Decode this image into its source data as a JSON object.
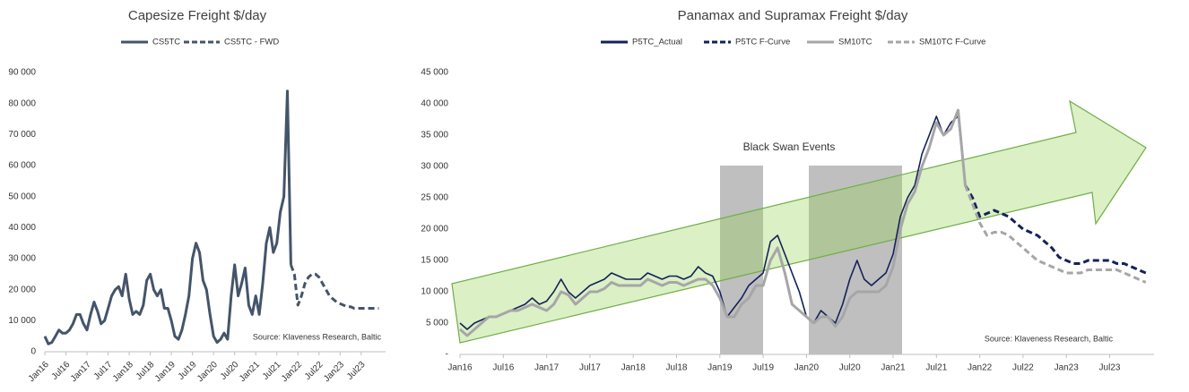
{
  "chart_data": [
    {
      "type": "line",
      "title": "Capesize Freight $/day",
      "annotation": "Source: Klaveness Research, Baltic",
      "categories": [
        "Jan16",
        null,
        null,
        null,
        null,
        null,
        "Jul16",
        null,
        null,
        null,
        null,
        null,
        "Jan17",
        null,
        null,
        null,
        null,
        null,
        "Jul17",
        null,
        null,
        null,
        null,
        null,
        "Jan18",
        null,
        null,
        null,
        null,
        null,
        "Jul18",
        null,
        null,
        null,
        null,
        null,
        "Jan19",
        null,
        null,
        null,
        null,
        null,
        "Jul19",
        null,
        null,
        null,
        null,
        null,
        "Jan20",
        null,
        null,
        null,
        null,
        null,
        "Jul20",
        null,
        null,
        null,
        null,
        null,
        "Jan21",
        null,
        null,
        null,
        null,
        null,
        "Jul21",
        null,
        null,
        null,
        null,
        null,
        "Jan22",
        null,
        null,
        null,
        null,
        null,
        "Jul22",
        null,
        null,
        null,
        null,
        null,
        "Jan23",
        null,
        null,
        null,
        null,
        null,
        "Jul23",
        null,
        null,
        null,
        null,
        null
      ],
      "series": [
        {
          "name": "CS5TC",
          "color": "#44546a",
          "style": "solid",
          "values": [
            5000,
            2500,
            3000,
            5000,
            7000,
            6000,
            6000,
            7000,
            9000,
            12000,
            12000,
            9000,
            7000,
            12000,
            16000,
            13000,
            9000,
            10000,
            14000,
            18000,
            20000,
            21000,
            18000,
            25000,
            17000,
            12000,
            13000,
            12000,
            15000,
            23000,
            25000,
            20000,
            18000,
            20000,
            14000,
            14000,
            10000,
            5000,
            4000,
            7000,
            12000,
            18000,
            30000,
            35000,
            32000,
            23000,
            20000,
            12000,
            5000,
            3000,
            4000,
            6000,
            4000,
            18000,
            28000,
            18000,
            22000,
            27000,
            15000,
            12000,
            18000,
            12000,
            22000,
            35000,
            40000,
            32000,
            35000,
            45000,
            50000,
            84000,
            28000,
            null,
            null,
            null,
            null,
            null,
            null,
            null,
            null,
            null,
            null,
            null,
            null,
            null,
            null,
            null,
            null,
            null,
            null,
            null,
            null,
            null,
            null,
            null,
            null,
            null
          ]
        },
        {
          "name": "CS5TC - FWD",
          "color": "#44546a",
          "style": "dashed",
          "values": [
            null,
            null,
            null,
            null,
            null,
            null,
            null,
            null,
            null,
            null,
            null,
            null,
            null,
            null,
            null,
            null,
            null,
            null,
            null,
            null,
            null,
            null,
            null,
            null,
            null,
            null,
            null,
            null,
            null,
            null,
            null,
            null,
            null,
            null,
            null,
            null,
            null,
            null,
            null,
            null,
            null,
            null,
            null,
            null,
            null,
            null,
            null,
            null,
            null,
            null,
            null,
            null,
            null,
            null,
            null,
            null,
            null,
            null,
            null,
            null,
            null,
            null,
            null,
            null,
            null,
            null,
            null,
            null,
            null,
            null,
            28000,
            25000,
            15000,
            18000,
            22000,
            24000,
            25000,
            25000,
            24000,
            22000,
            20000,
            18000,
            17000,
            16000,
            15500,
            15000,
            14500,
            14500,
            14000,
            14000,
            14000,
            14000,
            14000,
            14000,
            14000,
            14000
          ]
        }
      ],
      "ylim": [
        0,
        90000
      ],
      "yticks": [
        0,
        {
          "value": 10000,
          "label": "10 000"
        },
        {
          "value": 20000,
          "label": "20 000"
        },
        {
          "value": 30000,
          "label": "30 000"
        },
        {
          "value": 40000,
          "label": "40 000"
        },
        {
          "value": 50000,
          "label": "50 000"
        },
        {
          "value": 60000,
          "label": "60 000"
        },
        {
          "value": 70000,
          "label": "70 000"
        },
        {
          "value": 80000,
          "label": "80 000"
        },
        {
          "value": 90000,
          "label": "90 000"
        }
      ]
    },
    {
      "type": "line",
      "title": "Panamax and Supramax Freight $/day",
      "annotation": "Black  Swan Events",
      "source": "Source: Klaveness Research, Baltic",
      "categories": [
        "Jan16",
        null,
        null,
        null,
        null,
        null,
        "Jul16",
        null,
        null,
        null,
        null,
        null,
        "Jan17",
        null,
        null,
        null,
        null,
        null,
        "Jul17",
        null,
        null,
        null,
        null,
        null,
        "Jan18",
        null,
        null,
        null,
        null,
        null,
        "Jul18",
        null,
        null,
        null,
        null,
        null,
        "Jan19",
        null,
        null,
        null,
        null,
        null,
        "Jul19",
        null,
        null,
        null,
        null,
        null,
        "Jan20",
        null,
        null,
        null,
        null,
        null,
        "Jul20",
        null,
        null,
        null,
        null,
        null,
        "Jan21",
        null,
        null,
        null,
        null,
        null,
        "Jul21",
        null,
        null,
        null,
        null,
        null,
        "Jan22",
        null,
        null,
        null,
        null,
        null,
        "Jul22",
        null,
        null,
        null,
        null,
        null,
        "Jan23",
        null,
        null,
        null,
        null,
        null,
        "Jul23",
        null,
        null,
        null,
        null,
        null
      ],
      "series": [
        {
          "name": "P5TC_Actual",
          "color": "#14215a",
          "style": "solid",
          "width": 1.6,
          "values": [
            5000,
            4000,
            5000,
            5500,
            6000,
            6000,
            6500,
            7000,
            7500,
            8000,
            9000,
            8000,
            8500,
            10000,
            12000,
            10000,
            9000,
            10000,
            11000,
            11500,
            12000,
            13000,
            12500,
            12000,
            12000,
            12000,
            13000,
            12500,
            12000,
            12500,
            12500,
            12000,
            12500,
            14000,
            13000,
            12500,
            10000,
            6000,
            7500,
            9000,
            11000,
            12000,
            13000,
            18000,
            19000,
            16000,
            13000,
            10000,
            6000,
            5000,
            7000,
            6000,
            5000,
            8000,
            12000,
            15000,
            12000,
            11000,
            12000,
            13000,
            16000,
            22000,
            25000,
            27000,
            32000,
            35000,
            38000,
            35000,
            37000,
            38000,
            27000,
            null,
            null,
            null,
            null,
            null,
            null,
            null,
            null,
            null,
            null,
            null,
            null,
            null,
            null,
            null,
            null,
            null,
            null,
            null,
            null,
            null,
            null,
            null,
            null,
            null
          ]
        },
        {
          "name": "P5TC F-Curve",
          "color": "#14215a",
          "style": "dashed",
          "width": 3,
          "values": [
            null,
            null,
            null,
            null,
            null,
            null,
            null,
            null,
            null,
            null,
            null,
            null,
            null,
            null,
            null,
            null,
            null,
            null,
            null,
            null,
            null,
            null,
            null,
            null,
            null,
            null,
            null,
            null,
            null,
            null,
            null,
            null,
            null,
            null,
            null,
            null,
            null,
            null,
            null,
            null,
            null,
            null,
            null,
            null,
            null,
            null,
            null,
            null,
            null,
            null,
            null,
            null,
            null,
            null,
            null,
            null,
            null,
            null,
            null,
            null,
            null,
            null,
            null,
            null,
            null,
            null,
            null,
            null,
            null,
            null,
            27000,
            25000,
            22000,
            22500,
            23000,
            22500,
            22000,
            21000,
            20000,
            19500,
            19000,
            18000,
            17000,
            15500,
            15000,
            14500,
            14500,
            15000,
            15000,
            15000,
            15000,
            14500,
            14500,
            14000,
            13500,
            13000
          ]
        },
        {
          "name": "SM10TC",
          "color": "#a6a6a6",
          "style": "solid",
          "width": 3,
          "values": [
            4000,
            3000,
            4000,
            5000,
            6000,
            6000,
            6500,
            7000,
            7000,
            7500,
            8000,
            7500,
            7000,
            8000,
            10000,
            9500,
            8000,
            9000,
            10000,
            10000,
            10500,
            11500,
            11000,
            11000,
            11000,
            11000,
            12000,
            11500,
            11000,
            11500,
            11500,
            11000,
            11500,
            12000,
            12000,
            11000,
            9000,
            6000,
            6000,
            8000,
            9000,
            11000,
            11000,
            15000,
            17000,
            13000,
            8000,
            7000,
            6000,
            5000,
            6000,
            6000,
            4500,
            6000,
            9000,
            10000,
            10000,
            10000,
            10000,
            11000,
            14000,
            20000,
            24000,
            26000,
            30000,
            33000,
            37000,
            35000,
            36000,
            39000,
            27000,
            null,
            null,
            null,
            null,
            null,
            null,
            null,
            null,
            null,
            null,
            null,
            null,
            null,
            null,
            null,
            null,
            null,
            null,
            null,
            null,
            null,
            null,
            null,
            null,
            null
          ]
        },
        {
          "name": "SM10TC F-Curve",
          "color": "#a6a6a6",
          "style": "dashed",
          "width": 3,
          "values": [
            null,
            null,
            null,
            null,
            null,
            null,
            null,
            null,
            null,
            null,
            null,
            null,
            null,
            null,
            null,
            null,
            null,
            null,
            null,
            null,
            null,
            null,
            null,
            null,
            null,
            null,
            null,
            null,
            null,
            null,
            null,
            null,
            null,
            null,
            null,
            null,
            null,
            null,
            null,
            null,
            null,
            null,
            null,
            null,
            null,
            null,
            null,
            null,
            null,
            null,
            null,
            null,
            null,
            null,
            null,
            null,
            null,
            null,
            null,
            null,
            null,
            null,
            null,
            null,
            null,
            null,
            null,
            null,
            null,
            null,
            27000,
            24000,
            21000,
            19000,
            19500,
            19500,
            19000,
            18000,
            17000,
            16000,
            15000,
            14500,
            14000,
            13500,
            13000,
            13000,
            13000,
            13500,
            13500,
            13500,
            13500,
            13500,
            13000,
            12500,
            12000,
            11500
          ]
        }
      ],
      "ylim": [
        0,
        45000
      ],
      "yticks": [
        {
          "value": 0,
          "label": "-"
        },
        {
          "value": 5000,
          "label": "5 000"
        },
        {
          "value": 10000,
          "label": "10 000"
        },
        {
          "value": 15000,
          "label": "15 000"
        },
        {
          "value": 20000,
          "label": "20 000"
        },
        {
          "value": 25000,
          "label": "25 000"
        },
        {
          "value": 30000,
          "label": "30 000"
        },
        {
          "value": 35000,
          "label": "35 000"
        },
        {
          "value": 40000,
          "label": "40 000"
        },
        {
          "value": 45000,
          "label": "45 000"
        }
      ]
    }
  ]
}
